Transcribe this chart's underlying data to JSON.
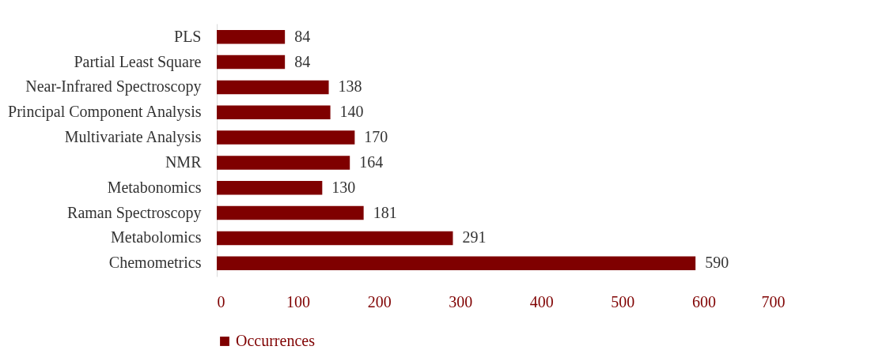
{
  "chart_data": {
    "type": "bar",
    "orientation": "horizontal",
    "categories": [
      "PLS",
      "Partial Least Square",
      "Near-Infrared Spectroscopy",
      "Principal Component Analysis",
      "Multivariate Analysis",
      "NMR",
      "Metabonomics",
      "Raman Spectroscopy",
      "Metabolomics",
      "Chemometrics"
    ],
    "series": [
      {
        "name": "Occurrences",
        "color": "#7f0000",
        "values": [
          84,
          84,
          138,
          140,
          170,
          164,
          130,
          181,
          291,
          590
        ]
      }
    ],
    "xlim": [
      0,
      700
    ],
    "xticks": [
      0,
      100,
      200,
      300,
      400,
      500,
      600,
      700
    ],
    "data_labels": true,
    "grid": false,
    "legend": "bottom"
  }
}
